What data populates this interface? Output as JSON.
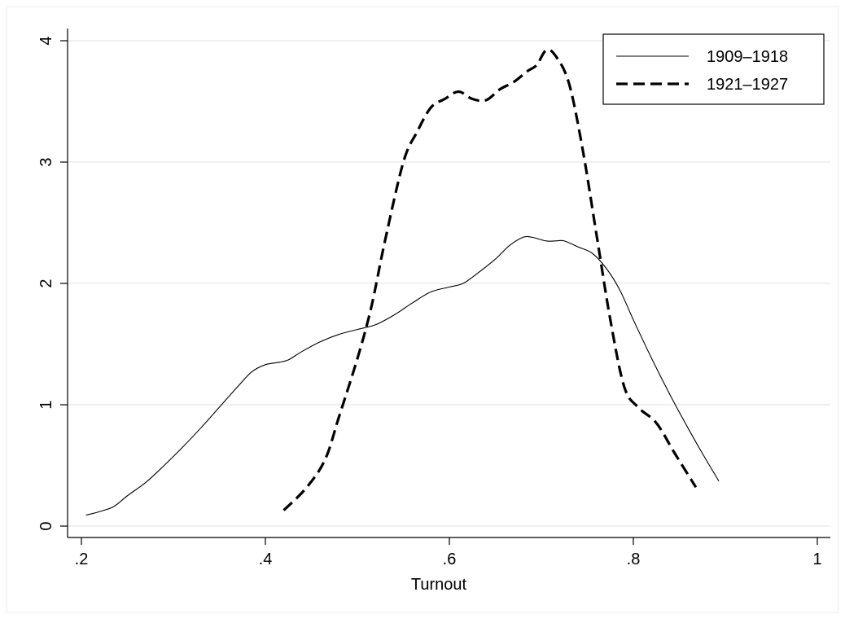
{
  "chart_data": {
    "type": "line",
    "title": "",
    "xlabel": "Turnout",
    "ylabel": "",
    "xlim": [
      0.2,
      1.0
    ],
    "ylim": [
      0,
      4
    ],
    "x_ticks": [
      0.2,
      0.4,
      0.6,
      0.8,
      1.0
    ],
    "x_tick_labels": [
      ".2",
      ".4",
      ".6",
      ".8",
      "1"
    ],
    "y_ticks": [
      0,
      1,
      2,
      3,
      4
    ],
    "y_tick_labels": [
      "0",
      "1",
      "2",
      "3",
      "4"
    ],
    "grid": "horizontal",
    "legend_position": "top-right",
    "series": [
      {
        "name": "1909–1918",
        "style": "solid",
        "color": "#000000",
        "points": [
          [
            0.205,
            0.09
          ],
          [
            0.22,
            0.12
          ],
          [
            0.235,
            0.16
          ],
          [
            0.25,
            0.25
          ],
          [
            0.27,
            0.36
          ],
          [
            0.29,
            0.5
          ],
          [
            0.31,
            0.65
          ],
          [
            0.33,
            0.81
          ],
          [
            0.35,
            0.98
          ],
          [
            0.37,
            1.15
          ],
          [
            0.385,
            1.27
          ],
          [
            0.4,
            1.33
          ],
          [
            0.415,
            1.35
          ],
          [
            0.425,
            1.37
          ],
          [
            0.44,
            1.44
          ],
          [
            0.46,
            1.52
          ],
          [
            0.48,
            1.58
          ],
          [
            0.5,
            1.62
          ],
          [
            0.52,
            1.66
          ],
          [
            0.54,
            1.74
          ],
          [
            0.56,
            1.84
          ],
          [
            0.58,
            1.93
          ],
          [
            0.6,
            1.97
          ],
          [
            0.615,
            2.0
          ],
          [
            0.63,
            2.08
          ],
          [
            0.65,
            2.2
          ],
          [
            0.665,
            2.31
          ],
          [
            0.68,
            2.38
          ],
          [
            0.69,
            2.38
          ],
          [
            0.705,
            2.35
          ],
          [
            0.715,
            2.35
          ],
          [
            0.725,
            2.35
          ],
          [
            0.74,
            2.3
          ],
          [
            0.755,
            2.25
          ],
          [
            0.77,
            2.13
          ],
          [
            0.785,
            1.95
          ],
          [
            0.8,
            1.7
          ],
          [
            0.82,
            1.38
          ],
          [
            0.84,
            1.08
          ],
          [
            0.86,
            0.8
          ],
          [
            0.875,
            0.6
          ],
          [
            0.893,
            0.37
          ]
        ]
      },
      {
        "name": "1921–1927",
        "style": "dashed",
        "color": "#000000",
        "points": [
          [
            0.42,
            0.13
          ],
          [
            0.445,
            0.32
          ],
          [
            0.465,
            0.55
          ],
          [
            0.48,
            0.9
          ],
          [
            0.5,
            1.38
          ],
          [
            0.515,
            1.8
          ],
          [
            0.53,
            2.35
          ],
          [
            0.55,
            3.0
          ],
          [
            0.565,
            3.25
          ],
          [
            0.58,
            3.45
          ],
          [
            0.595,
            3.52
          ],
          [
            0.61,
            3.58
          ],
          [
            0.625,
            3.52
          ],
          [
            0.64,
            3.51
          ],
          [
            0.655,
            3.6
          ],
          [
            0.67,
            3.66
          ],
          [
            0.685,
            3.75
          ],
          [
            0.695,
            3.8
          ],
          [
            0.705,
            3.92
          ],
          [
            0.715,
            3.88
          ],
          [
            0.73,
            3.65
          ],
          [
            0.745,
            3.1
          ],
          [
            0.76,
            2.4
          ],
          [
            0.775,
            1.7
          ],
          [
            0.79,
            1.15
          ],
          [
            0.805,
            0.98
          ],
          [
            0.825,
            0.85
          ],
          [
            0.845,
            0.6
          ],
          [
            0.868,
            0.32
          ]
        ]
      }
    ]
  }
}
